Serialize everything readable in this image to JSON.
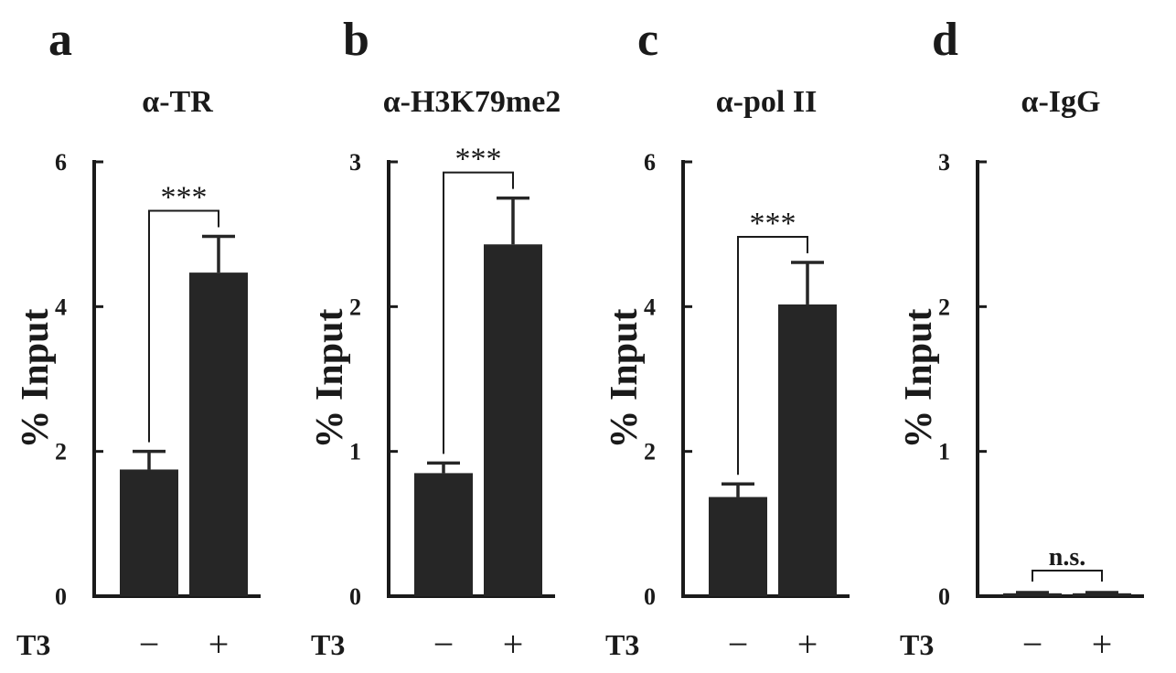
{
  "chart_data": [
    {
      "type": "bar",
      "panel": "a",
      "title": "α-TR",
      "ylabel": "% Input",
      "xlabel": "T3",
      "categories": [
        "−",
        "+"
      ],
      "values": [
        1.75,
        4.47
      ],
      "errors": [
        0.25,
        0.5
      ],
      "ylim": [
        0,
        6
      ],
      "yticks": [
        "0",
        "2",
        "4",
        "6"
      ],
      "significance": "***"
    },
    {
      "type": "bar",
      "panel": "b",
      "title": "α-H3K79me2",
      "ylabel": "% Input",
      "xlabel": "T3",
      "categories": [
        "−",
        "+"
      ],
      "values": [
        0.85,
        2.43
      ],
      "errors": [
        0.07,
        0.32
      ],
      "ylim": [
        0,
        3
      ],
      "yticks": [
        "0",
        "1",
        "2",
        "3"
      ],
      "significance": "***"
    },
    {
      "type": "bar",
      "panel": "c",
      "title": "α-pol II",
      "ylabel": "% Input",
      "xlabel": "T3",
      "categories": [
        "−",
        "+"
      ],
      "values": [
        1.37,
        4.03
      ],
      "errors": [
        0.18,
        0.58
      ],
      "ylim": [
        0,
        6
      ],
      "yticks": [
        "0",
        "2",
        "4",
        "6"
      ],
      "significance": "***"
    },
    {
      "type": "bar",
      "panel": "d",
      "title": "α-IgG",
      "ylabel": "% Input",
      "xlabel": "T3",
      "categories": [
        "−",
        "+"
      ],
      "values": [
        0.02,
        0.02
      ],
      "errors": [
        0.005,
        0.005
      ],
      "ylim": [
        0,
        3
      ],
      "yticks": [
        "0",
        "1",
        "2",
        "3"
      ],
      "significance": "n.s."
    }
  ],
  "colors": {
    "bar": "#262626",
    "axis": "#1a1a1a"
  }
}
